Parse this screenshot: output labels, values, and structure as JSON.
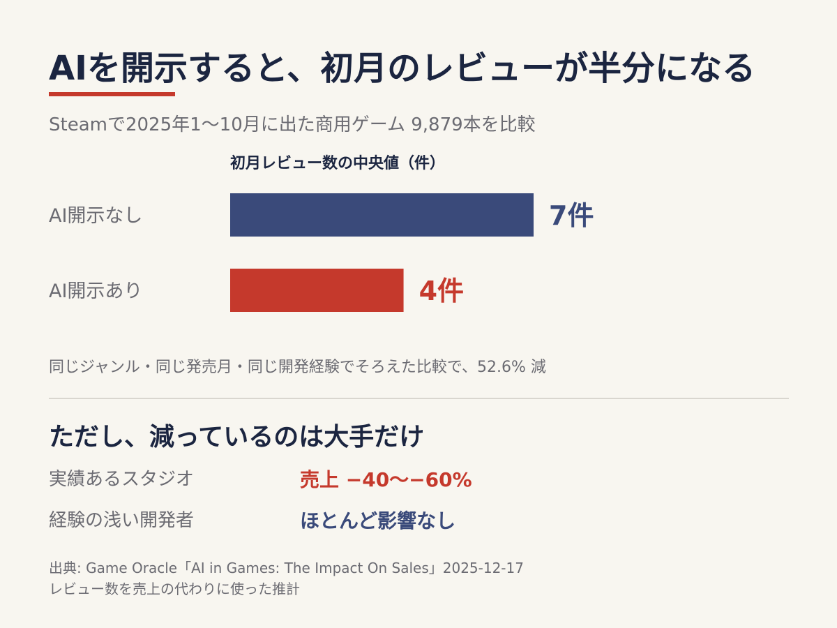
{
  "header": {
    "title": "AIを開示すると、初月のレビューが半分になる",
    "subtitle": "Steamで2025年1〜10月に出た商用ゲーム 9,879本を比較"
  },
  "colors": {
    "accent_red": "#c5392c",
    "navy": "#3a4a7a",
    "title": "#1b2540",
    "muted": "#6b6b72",
    "background": "#f8f6f0"
  },
  "chart_data": {
    "type": "bar",
    "orientation": "horizontal",
    "title": "初月レビュー数の中央値（件）",
    "categories": [
      "AI開示なし",
      "AI開示あり"
    ],
    "values": [
      7,
      4
    ],
    "value_labels": [
      "7件",
      "4件"
    ],
    "colors": [
      "#3a4a7a",
      "#c5392c"
    ],
    "xlim": [
      0,
      10
    ],
    "grid": false,
    "legend": "none"
  },
  "note": "同じジャンル・同じ発売月・同じ開発経験でそろえた比較で、52.6% 減",
  "section": {
    "title": "ただし、減っているのは大手だけ",
    "rows": [
      {
        "label": "実績あるスタジオ",
        "value": "売上 −40〜−60%",
        "color": "#c5392c"
      },
      {
        "label": "経験の浅い開発者",
        "value": "ほとんど影響なし",
        "color": "#3a4a7a"
      }
    ]
  },
  "source": {
    "line1": "出典: Game Oracle「AI in Games: The Impact On Sales」2025-12-17",
    "line2": "レビュー数を売上の代わりに使った推計"
  }
}
